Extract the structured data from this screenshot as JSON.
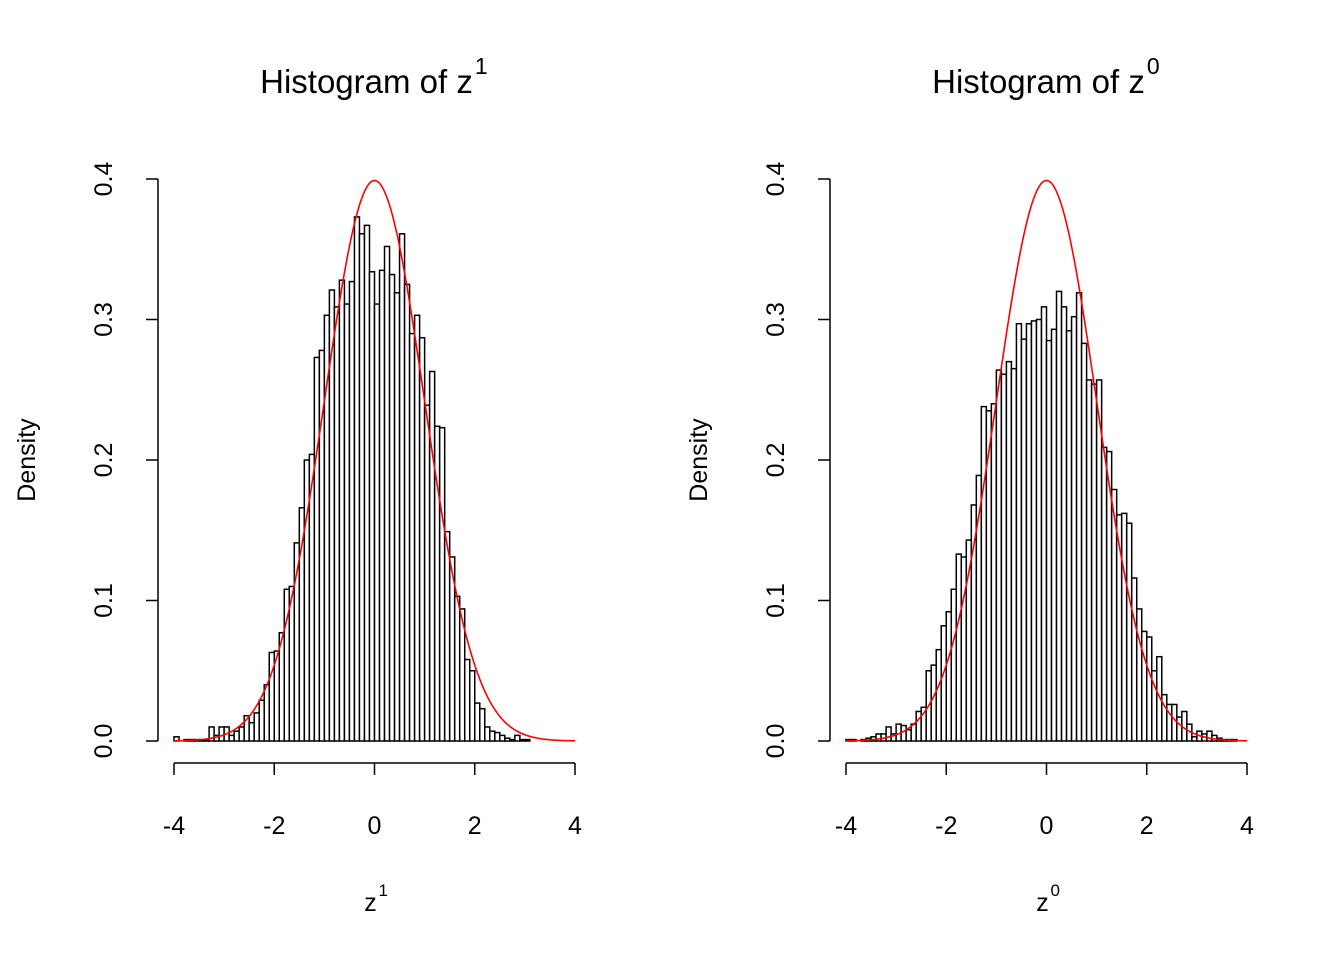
{
  "chart_data": [
    {
      "type": "bar",
      "title": "Histogram of z",
      "title_sup": "1",
      "xlabel": "z",
      "xlabel_sup": "1",
      "ylabel": "Density",
      "xlim": [
        -4,
        4
      ],
      "ylim": [
        0,
        0.4
      ],
      "xticks": [
        "-4",
        "-2",
        "0",
        "2",
        "4"
      ],
      "yticks": [
        "0.0",
        "0.1",
        "0.2",
        "0.3",
        "0.4"
      ],
      "bin_start": -4.0,
      "bin_width": 0.1,
      "values": [
        0.003,
        0,
        0.001,
        0.001,
        0.001,
        0.001,
        0.001,
        0.01,
        0.004,
        0.01,
        0.01,
        0.004,
        0.007,
        0.01,
        0.018,
        0.013,
        0.02,
        0.029,
        0.04,
        0.063,
        0.064,
        0.077,
        0.108,
        0.11,
        0.141,
        0.166,
        0.2,
        0.204,
        0.273,
        0.278,
        0.303,
        0.321,
        0.309,
        0.328,
        0.311,
        0.327,
        0.373,
        0.361,
        0.367,
        0.334,
        0.311,
        0.335,
        0.352,
        0.332,
        0.319,
        0.361,
        0.325,
        0.29,
        0.303,
        0.287,
        0.239,
        0.263,
        0.224,
        0.223,
        0.149,
        0.131,
        0.103,
        0.094,
        0.058,
        0.05,
        0.027,
        0.023,
        0.01,
        0.007,
        0.006,
        0.004,
        0.002,
        0.001,
        0.004,
        0.001,
        0.001
      ],
      "curve": {
        "name": "standard normal density",
        "color": "#ff0000"
      }
    },
    {
      "type": "bar",
      "title": "Histogram of z",
      "title_sup": "0",
      "xlabel": "z",
      "xlabel_sup": "0",
      "ylabel": "Density",
      "xlim": [
        -4,
        4
      ],
      "ylim": [
        0,
        0.4
      ],
      "xticks": [
        "-4",
        "-2",
        "0",
        "2",
        "4"
      ],
      "yticks": [
        "0.0",
        "0.1",
        "0.2",
        "0.3",
        "0.4"
      ],
      "bin_start": -4.0,
      "bin_width": 0.1,
      "values": [
        0.001,
        0.001,
        0,
        0.001,
        0.002,
        0.003,
        0.005,
        0.005,
        0.01,
        0.005,
        0.012,
        0.011,
        0.008,
        0.012,
        0.021,
        0.024,
        0.05,
        0.054,
        0.065,
        0.082,
        0.092,
        0.108,
        0.133,
        0.131,
        0.143,
        0.168,
        0.189,
        0.238,
        0.235,
        0.24,
        0.264,
        0.261,
        0.27,
        0.265,
        0.297,
        0.286,
        0.297,
        0.299,
        0.3,
        0.309,
        0.285,
        0.293,
        0.32,
        0.309,
        0.292,
        0.302,
        0.319,
        0.283,
        0.257,
        0.254,
        0.257,
        0.209,
        0.206,
        0.179,
        0.161,
        0.162,
        0.155,
        0.116,
        0.094,
        0.078,
        0.074,
        0.05,
        0.06,
        0.033,
        0.026,
        0.026,
        0.017,
        0.021,
        0.012,
        0.003,
        0.007,
        0.005,
        0.007,
        0.004,
        0.002,
        0.001,
        0.001,
        0.001
      ],
      "curve": {
        "name": "standard normal density",
        "color": "#ff0000"
      }
    }
  ]
}
